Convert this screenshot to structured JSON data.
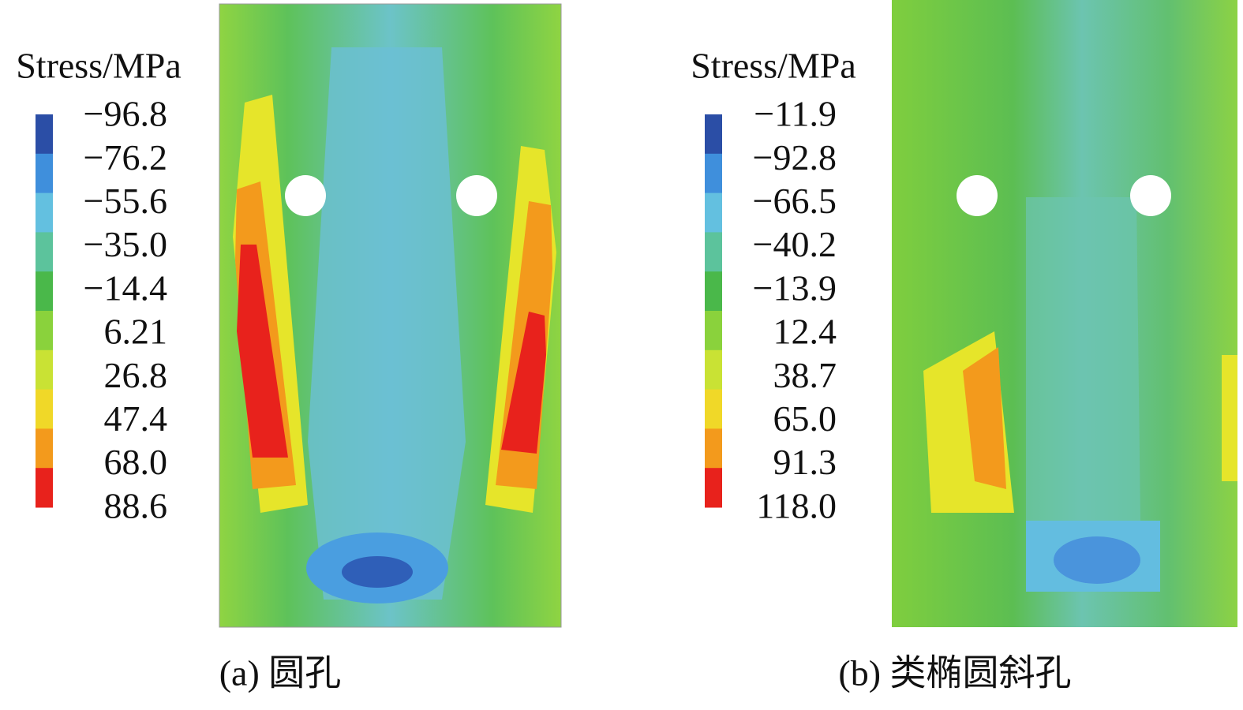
{
  "panels": [
    {
      "legend": {
        "title": "Stress/MPa",
        "labels": [
          "−96.8",
          "−76.2",
          "−55.6",
          "−35.0",
          "−14.4",
          "6.21",
          "26.8",
          "47.4",
          "68.0",
          "88.6"
        ],
        "colors": [
          "#2b4ea6",
          "#3f8fdc",
          "#63c0e0",
          "#5cc39c",
          "#4ab84a",
          "#8ad23c",
          "#c9e234",
          "#f0d828",
          "#f39a1c",
          "#e8221c"
        ]
      },
      "caption": "(a) 圆孔"
    },
    {
      "legend": {
        "title": "Stress/MPa",
        "labels": [
          "−11.9",
          "−92.8",
          "−66.5",
          "−40.2",
          "−13.9",
          "12.4",
          "38.7",
          "65.0",
          "91.3",
          "118.0"
        ],
        "colors": [
          "#2b4ea6",
          "#3f8fdc",
          "#63c0e0",
          "#5cc39c",
          "#4ab84a",
          "#8ad23c",
          "#c9e234",
          "#f0d828",
          "#f39a1c",
          "#e8221c"
        ]
      },
      "caption": "(b) 类椭圆斜孔"
    }
  ]
}
